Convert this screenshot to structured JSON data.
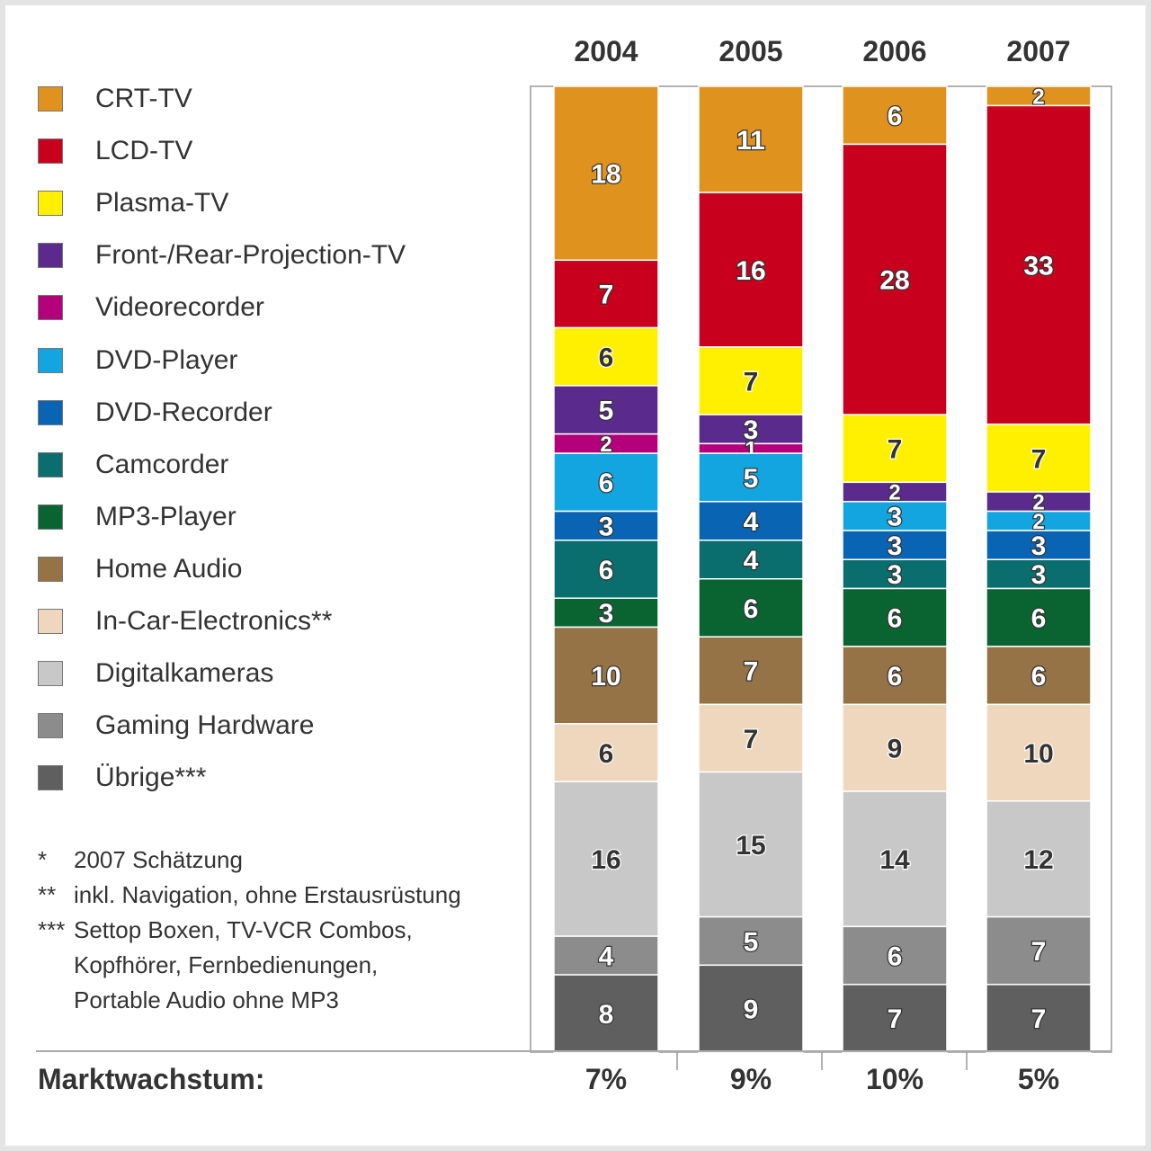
{
  "chart_data": {
    "type": "bar",
    "stacked": true,
    "categories": [
      "2004",
      "2005",
      "2006",
      "2007"
    ],
    "series": [
      {
        "name": "CRT-TV",
        "color": "#e0921e",
        "values": [
          18,
          11,
          6,
          2
        ]
      },
      {
        "name": "LCD-TV",
        "color": "#c8001e",
        "values": [
          7,
          16,
          28,
          33
        ]
      },
      {
        "name": "Plasma-TV",
        "color": "#fff000",
        "values": [
          6,
          7,
          7,
          7
        ]
      },
      {
        "name": "Front-/Rear-Projection-TV",
        "color": "#5a2a8c",
        "values": [
          5,
          3,
          2,
          2
        ]
      },
      {
        "name": "Videorecorder",
        "color": "#b4007a",
        "values": [
          2,
          1,
          0,
          0
        ]
      },
      {
        "name": "DVD-Player",
        "color": "#12a5e0",
        "values": [
          6,
          5,
          3,
          2
        ]
      },
      {
        "name": "DVD-Recorder",
        "color": "#0a64b4",
        "values": [
          3,
          4,
          3,
          3
        ]
      },
      {
        "name": "Camcorder",
        "color": "#0a6e6e",
        "values": [
          6,
          4,
          3,
          3
        ]
      },
      {
        "name": "MP3-Player",
        "color": "#0a6432",
        "values": [
          3,
          6,
          6,
          6
        ]
      },
      {
        "name": "Home Audio",
        "color": "#967346",
        "values": [
          10,
          7,
          6,
          6
        ]
      },
      {
        "name": "In-Car-Electronics**",
        "color": "#eed7bd",
        "values": [
          6,
          7,
          9,
          10
        ]
      },
      {
        "name": "Digitalkameras",
        "color": "#c8c8c8",
        "values": [
          16,
          15,
          14,
          12
        ]
      },
      {
        "name": "Gaming Hardware",
        "color": "#8c8c8c",
        "values": [
          4,
          5,
          6,
          7
        ]
      },
      {
        "name": "Übrige***",
        "color": "#5f5f5f",
        "values": [
          8,
          9,
          7,
          7
        ]
      }
    ],
    "growth_label": "Marktwachstum:",
    "growth": [
      "7%",
      "9%",
      "10%",
      "5%"
    ]
  },
  "footnotes": [
    {
      "mark": "*",
      "lines": [
        "2007 Schätzung"
      ]
    },
    {
      "mark": "**",
      "lines": [
        "inkl. Navigation, ohne Erstausrüstung"
      ]
    },
    {
      "mark": "***",
      "lines": [
        "Settop Boxen, TV-VCR Combos,",
        "Kopfhörer, Fernbedienungen,",
        "Portable Audio ohne MP3"
      ]
    }
  ]
}
